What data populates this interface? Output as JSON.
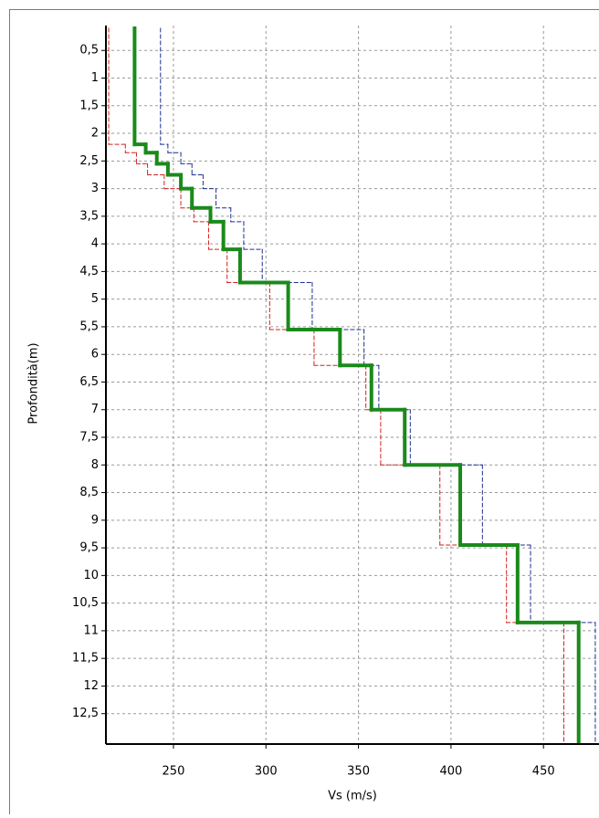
{
  "chart_data": {
    "type": "step-profile",
    "x_label": "Vs (m/s)",
    "y_label": "Profondità(m)",
    "xlim": [
      213.5,
      480
    ],
    "xticks": [
      250,
      300,
      350,
      400,
      450
    ],
    "ylim": [
      0.05,
      13.05
    ],
    "y_inverted": true,
    "yticks": [
      {
        "value": 0.5,
        "label": "0,5"
      },
      {
        "value": 1,
        "label": "1"
      },
      {
        "value": 1.5,
        "label": "1,5"
      },
      {
        "value": 2,
        "label": "2"
      },
      {
        "value": 2.5,
        "label": "2,5"
      },
      {
        "value": 3,
        "label": "3"
      },
      {
        "value": 3.5,
        "label": "3,5"
      },
      {
        "value": 4,
        "label": "4"
      },
      {
        "value": 4.5,
        "label": "4,5"
      },
      {
        "value": 5,
        "label": "5"
      },
      {
        "value": 5.5,
        "label": "5,5"
      },
      {
        "value": 6,
        "label": "6"
      },
      {
        "value": 6.5,
        "label": "6,5"
      },
      {
        "value": 7,
        "label": "7"
      },
      {
        "value": 7.5,
        "label": "7,5"
      },
      {
        "value": 8,
        "label": "8"
      },
      {
        "value": 8.5,
        "label": "8,5"
      },
      {
        "value": 9,
        "label": "9"
      },
      {
        "value": 9.5,
        "label": "9,5"
      },
      {
        "value": 10,
        "label": "10"
      },
      {
        "value": 10.5,
        "label": "10,5"
      },
      {
        "value": 11,
        "label": "11"
      },
      {
        "value": 11.5,
        "label": "11,5"
      },
      {
        "value": 12,
        "label": "12"
      },
      {
        "value": 12.5,
        "label": "12,5"
      }
    ],
    "grid": true,
    "depths": [
      0.1,
      2.2,
      2.35,
      2.55,
      2.75,
      3.0,
      3.35,
      3.6,
      4.1,
      4.7,
      5.55,
      6.2,
      7.0,
      8.0,
      9.45,
      10.85,
      13.05
    ],
    "series": [
      {
        "color": "#d42020",
        "dashed": true,
        "width": 1,
        "values": [
          215,
          224,
          230,
          236,
          245,
          254,
          261,
          269,
          279,
          302,
          326,
          354,
          362,
          394,
          430,
          461
        ]
      },
      {
        "color": "#1c2f8f",
        "dashed": true,
        "width": 1,
        "values": [
          243,
          247,
          254,
          260,
          266,
          273,
          281,
          288,
          298,
          325,
          353,
          361,
          378,
          417,
          443,
          478
        ]
      },
      {
        "color": "#1a8a1a",
        "dashed": false,
        "width": 4,
        "values": [
          229,
          235,
          241,
          247,
          254,
          260,
          270,
          277,
          286,
          312,
          340,
          357,
          375,
          405,
          436,
          469
        ]
      }
    ]
  }
}
